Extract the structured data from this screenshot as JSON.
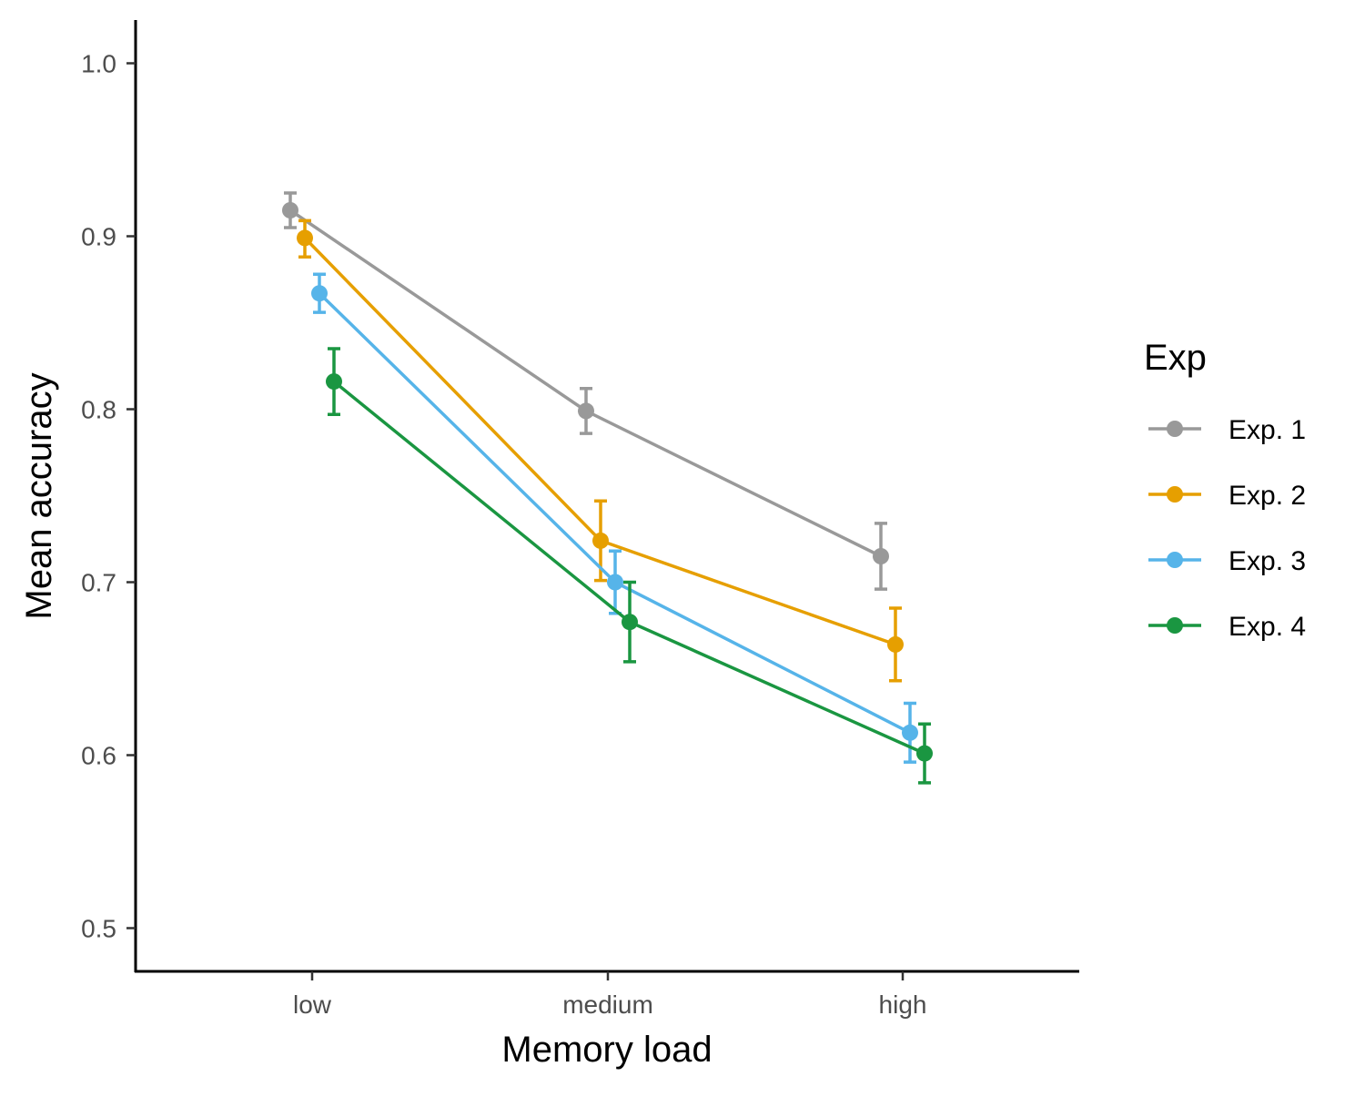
{
  "chart_data": {
    "type": "line",
    "title": "",
    "xlabel": "Memory load",
    "ylabel": "Mean accuracy",
    "categories": [
      "low",
      "medium",
      "high"
    ],
    "ylim": [
      0.475,
      1.025
    ],
    "yticks": [
      0.5,
      0.6,
      0.7,
      0.8,
      0.9,
      1.0
    ],
    "ytick_labels": [
      "0.5",
      "0.6",
      "0.7",
      "0.8",
      "0.9",
      "1.0"
    ],
    "grid": false,
    "error_bars": true,
    "legend": {
      "title": "Exp",
      "position": "right"
    },
    "series": [
      {
        "name": "Exp. 1",
        "color": "#999999",
        "values": [
          0.915,
          0.799,
          0.715
        ],
        "lower": [
          0.905,
          0.786,
          0.696
        ],
        "upper": [
          0.925,
          0.812,
          0.734
        ]
      },
      {
        "name": "Exp. 2",
        "color": "#E69F00",
        "values": [
          0.899,
          0.724,
          0.664
        ],
        "lower": [
          0.888,
          0.701,
          0.643
        ],
        "upper": [
          0.909,
          0.747,
          0.685
        ]
      },
      {
        "name": "Exp. 3",
        "color": "#56B4E9",
        "values": [
          0.867,
          0.7,
          0.613
        ],
        "lower": [
          0.856,
          0.682,
          0.596
        ],
        "upper": [
          0.878,
          0.718,
          0.63
        ]
      },
      {
        "name": "Exp. 4",
        "color": "#1A9641",
        "values": [
          0.816,
          0.677,
          0.601
        ],
        "lower": [
          0.797,
          0.654,
          0.584
        ],
        "upper": [
          0.835,
          0.7,
          0.618
        ]
      }
    ]
  }
}
